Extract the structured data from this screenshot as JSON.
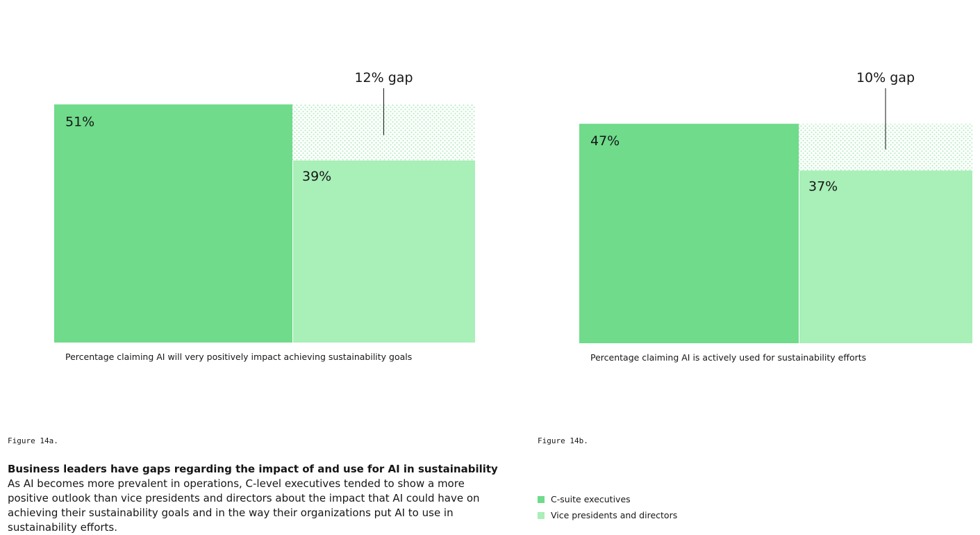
{
  "colors": {
    "csuite": "#6fdb8b",
    "vp": "#a8efb8",
    "gap": "#c4f0cd",
    "line": "#161616"
  },
  "chart_data": [
    {
      "type": "bar",
      "categories": [
        "C-suite executives",
        "Vice presidents and directors"
      ],
      "values": [
        51,
        39
      ],
      "value_labels": [
        "51%",
        "39%"
      ],
      "gap_value": 12,
      "gap_label": "12% gap",
      "xlabel": "Percentage claiming AI will very positively impact achieving sustainability goals",
      "title": "",
      "ylabel": ""
    },
    {
      "type": "bar",
      "categories": [
        "C-suite executives",
        "Vice presidents and directors"
      ],
      "values": [
        47,
        37
      ],
      "value_labels": [
        "47%",
        "37%"
      ],
      "gap_value": 10,
      "gap_label": "10% gap",
      "xlabel": "Percentage claiming AI is actively used for sustainability efforts",
      "title": "",
      "ylabel": ""
    }
  ],
  "figures": {
    "a_label": "Figure 14a.",
    "b_label": "Figure 14b.",
    "title": "Business leaders have gaps regarding the impact of and use for AI in sustainability",
    "body": "As AI becomes more prevalent in operations, C-level executives tended to show a more positive outlook than vice presidents and directors about the impact that AI could have on achieving their sustainability goals and in the way their organizations put AI to use in sustainability efforts."
  },
  "legend": {
    "items": [
      {
        "label": "C-suite executives",
        "color": "#6fdb8b"
      },
      {
        "label": "Vice presidents and directors",
        "color": "#a8efb8"
      }
    ]
  }
}
